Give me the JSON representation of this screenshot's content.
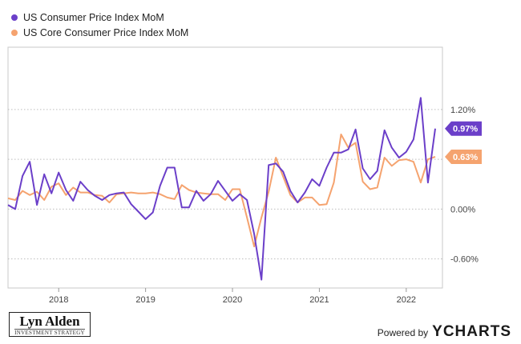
{
  "chart_data": {
    "type": "line",
    "series": [
      {
        "name": "US Consumer Price Index MoM",
        "color": "#6b3fc9",
        "end_label": "0.97%",
        "points": [
          [
            "2017-06",
            0.05
          ],
          [
            "2017-07",
            0.0
          ],
          [
            "2017-08",
            0.4
          ],
          [
            "2017-09",
            0.57
          ],
          [
            "2017-10",
            0.05
          ],
          [
            "2017-11",
            0.42
          ],
          [
            "2017-12",
            0.19
          ],
          [
            "2018-01",
            0.44
          ],
          [
            "2018-02",
            0.23
          ],
          [
            "2018-03",
            0.1
          ],
          [
            "2018-04",
            0.33
          ],
          [
            "2018-05",
            0.23
          ],
          [
            "2018-06",
            0.16
          ],
          [
            "2018-07",
            0.11
          ],
          [
            "2018-08",
            0.17
          ],
          [
            "2018-09",
            0.19
          ],
          [
            "2018-10",
            0.2
          ],
          [
            "2018-11",
            0.06
          ],
          [
            "2018-12",
            -0.03
          ],
          [
            "2019-01",
            -0.12
          ],
          [
            "2019-02",
            -0.04
          ],
          [
            "2019-03",
            0.28
          ],
          [
            "2019-04",
            0.5
          ],
          [
            "2019-05",
            0.5
          ],
          [
            "2019-06",
            0.02
          ],
          [
            "2019-07",
            0.02
          ],
          [
            "2019-08",
            0.22
          ],
          [
            "2019-09",
            0.1
          ],
          [
            "2019-10",
            0.18
          ],
          [
            "2019-11",
            0.34
          ],
          [
            "2019-12",
            0.22
          ],
          [
            "2020-01",
            0.1
          ],
          [
            "2020-02",
            0.18
          ],
          [
            "2020-03",
            0.11
          ],
          [
            "2020-04",
            -0.3
          ],
          [
            "2020-05",
            -0.85
          ],
          [
            "2020-06",
            0.53
          ],
          [
            "2020-07",
            0.55
          ],
          [
            "2020-08",
            0.45
          ],
          [
            "2020-09",
            0.22
          ],
          [
            "2020-10",
            0.08
          ],
          [
            "2020-11",
            0.2
          ],
          [
            "2020-12",
            0.36
          ],
          [
            "2021-01",
            0.28
          ],
          [
            "2021-02",
            0.5
          ],
          [
            "2021-03",
            0.68
          ],
          [
            "2021-04",
            0.68
          ],
          [
            "2021-05",
            0.72
          ],
          [
            "2021-06",
            0.96
          ],
          [
            "2021-07",
            0.49
          ],
          [
            "2021-08",
            0.36
          ],
          [
            "2021-09",
            0.46
          ],
          [
            "2021-10",
            0.95
          ],
          [
            "2021-11",
            0.74
          ],
          [
            "2021-12",
            0.62
          ],
          [
            "2022-01",
            0.69
          ],
          [
            "2022-02",
            0.84
          ],
          [
            "2022-03",
            1.34
          ],
          [
            "2022-04",
            0.32
          ],
          [
            "2022-05",
            0.97
          ]
        ]
      },
      {
        "name": "US Core Consumer Price Index MoM",
        "color": "#f5a36f",
        "end_label": "0.63%",
        "points": [
          [
            "2017-06",
            0.13
          ],
          [
            "2017-07",
            0.11
          ],
          [
            "2017-08",
            0.22
          ],
          [
            "2017-09",
            0.17
          ],
          [
            "2017-10",
            0.21
          ],
          [
            "2017-11",
            0.11
          ],
          [
            "2017-12",
            0.27
          ],
          [
            "2018-01",
            0.31
          ],
          [
            "2018-02",
            0.17
          ],
          [
            "2018-03",
            0.26
          ],
          [
            "2018-04",
            0.2
          ],
          [
            "2018-05",
            0.2
          ],
          [
            "2018-06",
            0.17
          ],
          [
            "2018-07",
            0.16
          ],
          [
            "2018-08",
            0.08
          ],
          [
            "2018-09",
            0.18
          ],
          [
            "2018-10",
            0.19
          ],
          [
            "2018-11",
            0.2
          ],
          [
            "2018-12",
            0.19
          ],
          [
            "2019-01",
            0.19
          ],
          [
            "2019-02",
            0.2
          ],
          [
            "2019-03",
            0.18
          ],
          [
            "2019-04",
            0.14
          ],
          [
            "2019-05",
            0.12
          ],
          [
            "2019-06",
            0.29
          ],
          [
            "2019-07",
            0.23
          ],
          [
            "2019-08",
            0.2
          ],
          [
            "2019-09",
            0.19
          ],
          [
            "2019-10",
            0.18
          ],
          [
            "2019-11",
            0.18
          ],
          [
            "2019-12",
            0.11
          ],
          [
            "2020-01",
            0.24
          ],
          [
            "2020-02",
            0.24
          ],
          [
            "2020-03",
            -0.1
          ],
          [
            "2020-04",
            -0.45
          ],
          [
            "2020-05",
            -0.1
          ],
          [
            "2020-06",
            0.21
          ],
          [
            "2020-07",
            0.62
          ],
          [
            "2020-08",
            0.39
          ],
          [
            "2020-09",
            0.17
          ],
          [
            "2020-10",
            0.08
          ],
          [
            "2020-11",
            0.14
          ],
          [
            "2020-12",
            0.14
          ],
          [
            "2021-01",
            0.05
          ],
          [
            "2021-02",
            0.06
          ],
          [
            "2021-03",
            0.32
          ],
          [
            "2021-04",
            0.9
          ],
          [
            "2021-05",
            0.74
          ],
          [
            "2021-06",
            0.8
          ],
          [
            "2021-07",
            0.33
          ],
          [
            "2021-08",
            0.24
          ],
          [
            "2021-09",
            0.26
          ],
          [
            "2021-10",
            0.62
          ],
          [
            "2021-11",
            0.52
          ],
          [
            "2021-12",
            0.59
          ],
          [
            "2022-01",
            0.6
          ],
          [
            "2022-02",
            0.57
          ],
          [
            "2022-03",
            0.32
          ],
          [
            "2022-04",
            0.6
          ],
          [
            "2022-05",
            0.63
          ]
        ]
      }
    ],
    "xlim": [
      "2017-06",
      "2022-06"
    ],
    "x_ticks": [
      "2018",
      "2019",
      "2020",
      "2021",
      "2022"
    ],
    "ylim": [
      -0.95,
      1.95
    ],
    "y_ticks": [
      1.2,
      0.6,
      0.0,
      -0.6
    ],
    "y_tick_labels": [
      "1.20%",
      "",
      "0.00%",
      "-0.60%"
    ],
    "grid": "horizontal dotted",
    "legend": "top-left",
    "y_axis_side": "right"
  },
  "footer": {
    "logo_name": "Lyn Alden",
    "logo_sub": "INVESTMENT STRATEGY",
    "powered_by": "Powered by",
    "brand": "YCHARTS"
  }
}
